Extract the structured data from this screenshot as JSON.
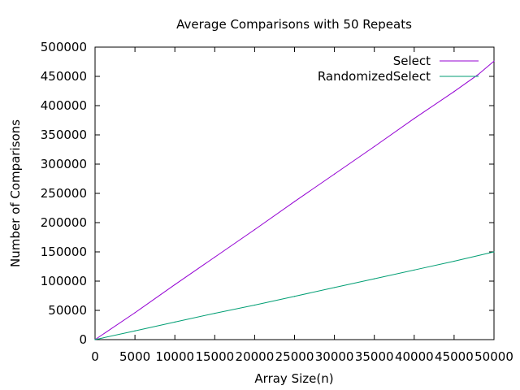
{
  "chart_data": {
    "type": "line",
    "title": "Average Comparisons with 50 Repeats",
    "xlabel": "Array Size(n)",
    "ylabel": "Number of Comparisons",
    "xlim": [
      0,
      50000
    ],
    "ylim": [
      0,
      500000
    ],
    "x_ticks": [
      "0",
      "5000",
      "10000",
      "15000",
      "20000",
      "25000",
      "30000",
      "35000",
      "40000",
      "45000",
      "50000"
    ],
    "y_ticks": [
      "0",
      "50000",
      "100000",
      "150000",
      "200000",
      "250000",
      "300000",
      "350000",
      "400000",
      "450000",
      "500000"
    ],
    "grid": false,
    "legend_position": "top-right",
    "series": [
      {
        "name": "Select",
        "color": "#9400d3",
        "x": [
          0,
          5000,
          10000,
          15000,
          20000,
          25000,
          30000,
          35000,
          40000,
          45000,
          48000,
          50000
        ],
        "y": [
          0,
          46000,
          94000,
          141000,
          188000,
          236000,
          283000,
          330000,
          378000,
          424000,
          453000,
          476000
        ]
      },
      {
        "name": "RandomizedSelect",
        "color": "#009e73",
        "x": [
          0,
          5000,
          10000,
          15000,
          20000,
          25000,
          30000,
          35000,
          40000,
          45000,
          50000
        ],
        "y": [
          0,
          15000,
          30000,
          45000,
          59000,
          74000,
          89000,
          104000,
          119000,
          134000,
          150000
        ]
      }
    ]
  }
}
